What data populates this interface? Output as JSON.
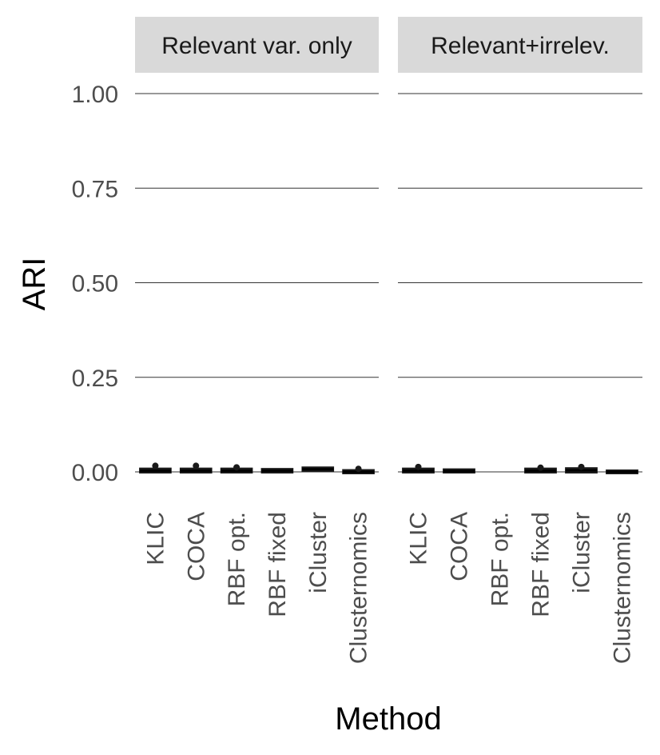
{
  "chart_data": {
    "type": "box",
    "xlabel": "Method",
    "ylabel": "ARI",
    "ylim": [
      0,
      1
    ],
    "yticks": [
      {
        "value": 0,
        "label": "0.00"
      },
      {
        "value": 0.25,
        "label": "0.25"
      },
      {
        "value": 0.5,
        "label": "0.50"
      },
      {
        "value": 0.75,
        "label": "0.75"
      },
      {
        "value": 1,
        "label": "1.00"
      }
    ],
    "categories": [
      "KLIC",
      "COCA",
      "RBF opt.",
      "RBF fixed",
      "iCluster",
      "Clusternomics"
    ],
    "grid": true,
    "colors": {
      "strip_bg": "#d9d9d9",
      "grid": "#333333",
      "box": "#1a1a1a"
    },
    "panels": [
      {
        "title": "Relevant var. only",
        "series": [
          {
            "method": "KLIC",
            "low": 0.0,
            "q1": 0.001,
            "median": 0.003,
            "q3": 0.006,
            "high": 0.009,
            "outliers": [
              0.016
            ]
          },
          {
            "method": "COCA",
            "low": 0.0,
            "q1": 0.001,
            "median": 0.003,
            "q3": 0.006,
            "high": 0.009,
            "outliers": [
              0.016
            ]
          },
          {
            "method": "RBF opt.",
            "low": 0.0,
            "q1": 0.001,
            "median": 0.003,
            "q3": 0.006,
            "high": 0.009,
            "outliers": [
              0.012
            ]
          },
          {
            "method": "RBF fixed",
            "low": 0.0,
            "q1": 0.001,
            "median": 0.003,
            "q3": 0.005,
            "high": 0.007,
            "outliers": []
          },
          {
            "method": "iCluster",
            "low": 0.003,
            "q1": 0.005,
            "median": 0.007,
            "q3": 0.009,
            "high": 0.012,
            "outliers": []
          },
          {
            "method": "Clusternomics",
            "low": -0.003,
            "q1": -0.001,
            "median": 0.0,
            "q3": 0.002,
            "high": 0.004,
            "outliers": [
              0.008
            ]
          }
        ]
      },
      {
        "title": "Relevant+irrelev.",
        "series": [
          {
            "method": "KLIC",
            "low": 0.0,
            "q1": 0.001,
            "median": 0.003,
            "q3": 0.006,
            "high": 0.009,
            "outliers": [
              0.013
            ]
          },
          {
            "method": "COCA",
            "low": 0.0,
            "q1": 0.001,
            "median": 0.002,
            "q3": 0.004,
            "high": 0.006,
            "outliers": []
          },
          {
            "method": "RBF opt.",
            "low": null,
            "q1": null,
            "median": null,
            "q3": null,
            "high": null,
            "outliers": []
          },
          {
            "method": "RBF fixed",
            "low": 0.0,
            "q1": 0.001,
            "median": 0.003,
            "q3": 0.006,
            "high": 0.009,
            "outliers": [
              0.011
            ]
          },
          {
            "method": "iCluster",
            "low": 0.0,
            "q1": 0.001,
            "median": 0.004,
            "q3": 0.007,
            "high": 0.01,
            "outliers": [
              0.013
            ]
          },
          {
            "method": "Clusternomics",
            "low": -0.003,
            "q1": -0.001,
            "median": 0.0,
            "q3": 0.001,
            "high": 0.003,
            "outliers": []
          }
        ]
      }
    ]
  }
}
